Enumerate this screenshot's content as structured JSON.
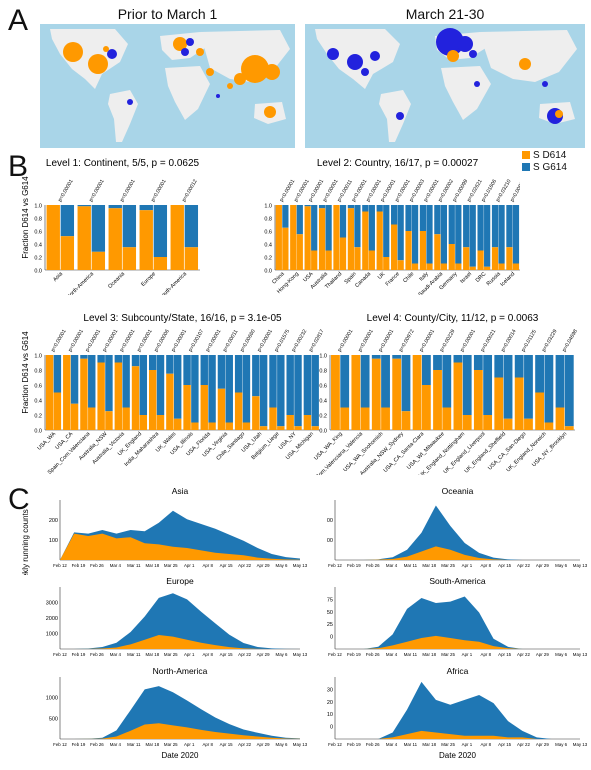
{
  "panel_labels": {
    "a": "A",
    "b": "B",
    "c": "C"
  },
  "maps": [
    {
      "title": "Prior to March 1"
    },
    {
      "title": "March 21-30"
    }
  ],
  "colors": {
    "d614": "#ff9900",
    "g614": "#1f77b4",
    "ocean": "#a9d5e8",
    "land": "#eeeeee",
    "gband": "#2222dd"
  },
  "legend": {
    "d614": "S D614",
    "g614": "S G614"
  },
  "chart_data": [
    {
      "type": "bar",
      "stacked": true,
      "title": "Level 1: Continent, 5/5, p = 0.0625",
      "ylabel": "Fraction D614 vs G614",
      "yticks": [
        "0.0",
        "0.2",
        "0.4",
        "0.6",
        "0.8",
        "1.0"
      ],
      "categories": [
        "Asia",
        "North-America",
        "Oceania",
        "Europe",
        "South-America"
      ],
      "pvalues": [
        "p<0.00001",
        "p<0.00001",
        "p<0.00001",
        "p<0.00001",
        "p=0.00012"
      ],
      "series": [
        {
          "name": "S D614",
          "values": [
            [
              1.0,
              0.52
            ],
            [
              0.98,
              0.28
            ],
            [
              0.95,
              0.35
            ],
            [
              0.92,
              0.2
            ],
            [
              1.0,
              0.35
            ]
          ]
        },
        {
          "name": "S G614",
          "values": [
            [
              0.0,
              0.48
            ],
            [
              0.02,
              0.72
            ],
            [
              0.05,
              0.65
            ],
            [
              0.08,
              0.8
            ],
            [
              0.0,
              0.65
            ]
          ]
        }
      ]
    },
    {
      "type": "bar",
      "stacked": true,
      "title": "Level 2: Country, 16/17, p = 0.00027",
      "yticks": [
        "0.0",
        "0.2",
        "0.4",
        "0.6",
        "0.8",
        "1.0"
      ],
      "categories": [
        "China",
        "Hong-Kong",
        "USA",
        "Australia",
        "Thailand",
        "Spain",
        "Canada",
        "UK",
        "France",
        "Chile",
        "Italy",
        "Saudi-Arabia",
        "Germany",
        "Israel",
        "DRC",
        "Russia",
        "Iceland"
      ],
      "pvalues": [
        "p<0.00001",
        "p<0.00001",
        "p<0.00001",
        "p<0.00001",
        "p=0.00011",
        "p<0.00001",
        "p<0.00001",
        "p<0.00001",
        "p<0.00001",
        "p=0.00003",
        "p<0.00001",
        "p=0.00002",
        "p=0.00099",
        "p=0.02621",
        "p=0.01606",
        "p=0.03210",
        "p=0.00819"
      ],
      "series": [
        {
          "name": "S D614",
          "values": [
            [
              1.0,
              0.65
            ],
            [
              1.0,
              0.55
            ],
            [
              0.98,
              0.3
            ],
            [
              0.95,
              0.3
            ],
            [
              1.0,
              0.5
            ],
            [
              0.95,
              0.35
            ],
            [
              0.9,
              0.3
            ],
            [
              0.9,
              0.2
            ],
            [
              0.7,
              0.15
            ],
            [
              0.6,
              0.1
            ],
            [
              0.6,
              0.1
            ],
            [
              0.55,
              0.1
            ],
            [
              0.4,
              0.1
            ],
            [
              0.35,
              0.05
            ],
            [
              0.3,
              0.05
            ],
            [
              0.35,
              0.1
            ],
            [
              0.35,
              0.1
            ]
          ]
        }
      ]
    },
    {
      "type": "bar",
      "stacked": true,
      "title": "Level 3: Subcounty/State, 16/16, p = 3.1e-05",
      "ylabel": "Fraction D614 vs G614",
      "yticks": [
        "0.0",
        "0.2",
        "0.4",
        "0.6",
        "0.8",
        "1.0"
      ],
      "categories": [
        "USA_WA",
        "USA_CA",
        "Spain_Com.Valenciana",
        "Australia_NSW",
        "Australia_Victoria",
        "UK_England",
        "India_Maharashtra",
        "UK_Wales",
        "USA_Illinois",
        "USA_Florida",
        "USA_Virginia",
        "Chile_Santiago",
        "USA_Utah",
        "Belgium_Liege",
        "USA_NY",
        "USA_Michigan"
      ],
      "pvalues": [
        "p<0.00001",
        "p<0.00001",
        "p<0.00001",
        "p<0.00001",
        "p<0.00001",
        "p<0.00001",
        "p=0.00006",
        "p<0.00001",
        "p=0.00107",
        "p<0.00001",
        "p=0.00011",
        "p=0.00660",
        "p<0.00001",
        "p=0.01575",
        "p=0.00232",
        "p=0.02817"
      ],
      "series": [
        {
          "name": "S D614",
          "values": [
            [
              1.0,
              0.5
            ],
            [
              1.0,
              0.35
            ],
            [
              0.95,
              0.3
            ],
            [
              0.9,
              0.25
            ],
            [
              0.9,
              0.3
            ],
            [
              0.85,
              0.2
            ],
            [
              0.8,
              0.2
            ],
            [
              0.75,
              0.15
            ],
            [
              0.6,
              0.1
            ],
            [
              0.6,
              0.1
            ],
            [
              0.55,
              0.1
            ],
            [
              0.5,
              0.1
            ],
            [
              0.45,
              0.05
            ],
            [
              0.3,
              0.05
            ],
            [
              0.2,
              0.05
            ],
            [
              0.2,
              0.05
            ]
          ]
        }
      ]
    },
    {
      "type": "bar",
      "stacked": true,
      "title": "Level 4: County/City, 11/12, p = 0.0063",
      "yticks": [
        "0.0",
        "0.2",
        "0.4",
        "0.6",
        "0.8",
        "1.0"
      ],
      "categories": [
        "USA_WA_King",
        "Spain_Com.Valenciana_Valencia",
        "USA_WA_Snohomish",
        "Australia_NSW_Sydney",
        "USA_CA_Santa-Clara",
        "USA_WI_Milwaukee",
        "UK_England_Nottingham",
        "UK_England_Liverpool",
        "UK_England_Sheffield",
        "USA_CA_San-Diego",
        "UK_England_Norwich",
        "USA_NY_Brooklyn"
      ],
      "pvalues": [
        "p<0.00001",
        "p<0.00001",
        "p<0.00001",
        "p=0.00972",
        "p<0.00001",
        "p=0.00229",
        "p<0.00001",
        "p=0.00021",
        "p=0.00014",
        "p=0.01125",
        "p=0.03229",
        "p=0.04698"
      ],
      "series": [
        {
          "name": "S D614",
          "values": [
            [
              1.0,
              0.3
            ],
            [
              1.0,
              0.3
            ],
            [
              0.95,
              0.3
            ],
            [
              0.95,
              0.25
            ],
            [
              1.0,
              0.6
            ],
            [
              0.8,
              0.3
            ],
            [
              0.9,
              0.2
            ],
            [
              0.8,
              0.2
            ],
            [
              0.7,
              0.15
            ],
            [
              0.7,
              0.15
            ],
            [
              0.5,
              0.1
            ],
            [
              0.3,
              0.05
            ]
          ]
        }
      ]
    },
    {
      "type": "area",
      "stacked": true,
      "title": "Asia",
      "ylabel": "Weekly running counts",
      "yticks": [
        "100",
        "200"
      ],
      "ylim": [
        0,
        250
      ],
      "xticks": [
        "Feb 12",
        "Feb 19",
        "Feb 26",
        "Mar 4",
        "Mar 11",
        "Mar 18",
        "Mar 25",
        "Apr 1",
        "Apr 8",
        "Apr 15",
        "Apr 22",
        "Apr 29",
        "May 6",
        "May 13"
      ],
      "series": [
        {
          "name": "S D614",
          "values": [
            0,
            110,
            100,
            110,
            90,
            95,
            70,
            65,
            55,
            50,
            40,
            30,
            25,
            20,
            10,
            5,
            2,
            1
          ]
        },
        {
          "name": "S G614",
          "values": [
            0,
            5,
            10,
            15,
            20,
            30,
            50,
            90,
            150,
            120,
            110,
            100,
            80,
            60,
            40,
            20,
            10,
            5
          ]
        }
      ]
    },
    {
      "type": "area",
      "stacked": true,
      "title": "Oceania",
      "yticks": [
        "00",
        "00"
      ],
      "xticks": [
        "Feb 12",
        "Feb 19",
        "Feb 26",
        "Mar 4",
        "Mar 11",
        "Mar 18",
        "Mar 25",
        "Apr 1",
        "Apr 8",
        "Apr 15",
        "Apr 22",
        "Apr 29",
        "May 6",
        "May 13"
      ],
      "series": [
        {
          "name": "S D614",
          "values": [
            0,
            0,
            0,
            1,
            3,
            10,
            25,
            40,
            30,
            15,
            6,
            2,
            0,
            0,
            0,
            0,
            0,
            0
          ]
        },
        {
          "name": "S G614",
          "values": [
            0,
            0,
            0,
            1,
            5,
            20,
            55,
            120,
            70,
            35,
            15,
            5,
            2,
            0,
            0,
            0,
            0,
            0
          ]
        }
      ]
    },
    {
      "type": "area",
      "stacked": true,
      "title": "Europe",
      "yticks": [
        "1000",
        "2000",
        "3000"
      ],
      "ylim": [
        0,
        4000
      ],
      "xticks": [
        "Feb 12",
        "Feb 19",
        "Feb 26",
        "Mar 4",
        "Mar 11",
        "Mar 18",
        "Mar 25",
        "Apr 1",
        "Apr 8",
        "Apr 15",
        "Apr 22",
        "Apr 29",
        "May 6",
        "May 13"
      ],
      "series": [
        {
          "name": "S D614",
          "values": [
            0,
            0,
            10,
            30,
            100,
            300,
            600,
            900,
            800,
            600,
            400,
            250,
            120,
            40,
            10,
            0,
            0,
            0
          ]
        },
        {
          "name": "S G614",
          "values": [
            0,
            0,
            20,
            100,
            300,
            800,
            1500,
            2400,
            2800,
            2600,
            2000,
            1400,
            800,
            350,
            120,
            40,
            10,
            0
          ]
        }
      ]
    },
    {
      "type": "area",
      "stacked": true,
      "title": "South-America",
      "yticks": [
        "0",
        "25",
        "50",
        "75"
      ],
      "ylim": [
        0,
        85
      ],
      "xticks": [
        "Feb 12",
        "Feb 19",
        "Feb 26",
        "Mar 4",
        "Mar 11",
        "Mar 18",
        "Mar 25",
        "Apr 1",
        "Apr 8",
        "Apr 15",
        "Apr 22",
        "Apr 29",
        "May 6",
        "May 13"
      ],
      "series": [
        {
          "name": "S D614",
          "values": [
            0,
            0,
            0,
            1,
            5,
            10,
            15,
            18,
            15,
            12,
            10,
            4,
            1,
            0,
            0,
            0,
            0,
            0
          ]
        },
        {
          "name": "S G614",
          "values": [
            0,
            0,
            0,
            2,
            15,
            45,
            55,
            45,
            50,
            60,
            40,
            10,
            2,
            0,
            0,
            0,
            0,
            0
          ]
        }
      ]
    },
    {
      "type": "area",
      "stacked": true,
      "title": "North-America",
      "yticks": [
        "500",
        "1000"
      ],
      "ylim": [
        0,
        1500
      ],
      "xticks": [
        "Feb 12",
        "Feb 19",
        "Feb 26",
        "Mar 4",
        "Mar 11",
        "Mar 18",
        "Mar 25",
        "Apr 1",
        "Apr 8",
        "Apr 15",
        "Apr 22",
        "Apr 29",
        "May 6",
        "May 13"
      ],
      "xlabel": "Date 2020",
      "series": [
        {
          "name": "S D614",
          "values": [
            0,
            0,
            2,
            10,
            60,
            200,
            350,
            380,
            330,
            280,
            220,
            170,
            130,
            90,
            60,
            30,
            10,
            5
          ]
        },
        {
          "name": "S G614",
          "values": [
            0,
            0,
            3,
            20,
            150,
            500,
            850,
            900,
            800,
            650,
            500,
            350,
            230,
            140,
            90,
            50,
            20,
            10
          ]
        }
      ]
    },
    {
      "type": "area",
      "stacked": true,
      "title": "Africa",
      "yticks": [
        "0",
        "10",
        "20",
        "30"
      ],
      "ylim": [
        0,
        38
      ],
      "xticks": [
        "Feb 12",
        "Feb 19",
        "Feb 26",
        "Mar 4",
        "Mar 11",
        "Mar 18",
        "Mar 25",
        "Apr 1",
        "Apr 8",
        "Apr 15",
        "Apr 22",
        "Apr 29",
        "May 6",
        "May 13"
      ],
      "xlabel": "Date 2020",
      "series": [
        {
          "name": "S D614",
          "values": [
            0,
            0,
            0,
            0,
            1,
            3,
            5,
            4,
            3,
            2,
            2,
            2,
            1,
            1,
            0,
            0,
            0,
            0
          ]
        },
        {
          "name": "S G614",
          "values": [
            0,
            0,
            0,
            0,
            3,
            15,
            30,
            20,
            18,
            22,
            25,
            20,
            10,
            4,
            1,
            0,
            0,
            0
          ]
        }
      ]
    }
  ]
}
